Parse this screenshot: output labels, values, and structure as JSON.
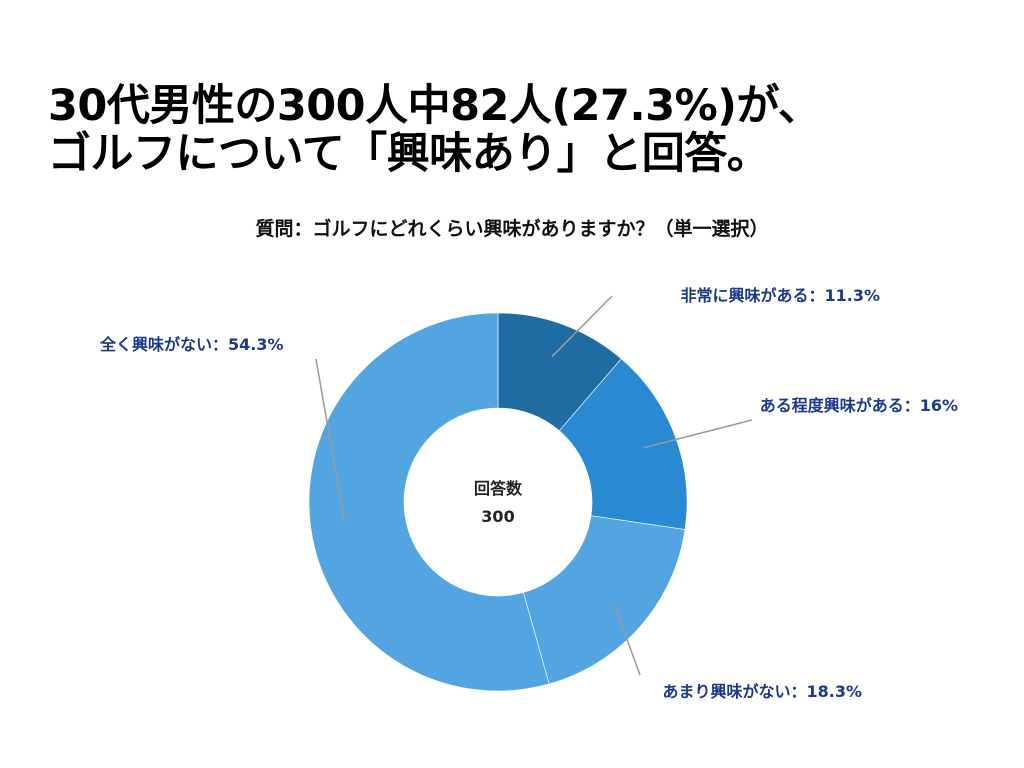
{
  "headline": {
    "line1": "30代男性の300人中82人(27.3%)が、",
    "line2": "ゴルフについて「興味あり」と回答。"
  },
  "question": "質問：ゴルフにどれくらい興味がありますか？（単一選択）",
  "center": {
    "label": "回答数",
    "value": "300"
  },
  "colors": {
    "label_text": "#1a3a8c",
    "leader_line": "#999999"
  },
  "chart_data": {
    "type": "pie",
    "donut": true,
    "title": "質問：ゴルフにどれくらい興味がありますか？（単一選択）",
    "total": 300,
    "slices": [
      {
        "name": "非常に興味がある",
        "value": 11.3,
        "label": "非常に興味がある：11.3%",
        "color": "#1f6ba4"
      },
      {
        "name": "ある程度興味がある",
        "value": 16,
        "label": "ある程度興味がある：16%",
        "color": "#2989d3"
      },
      {
        "name": "あまり興味がない",
        "value": 18.3,
        "label": "あまり興味がない：18.3%",
        "color": "#52a5e1"
      },
      {
        "name": "全く興味がない",
        "value": 54.3,
        "label": "全く興味がない：54.3%",
        "color": "#52a5e1"
      }
    ]
  }
}
